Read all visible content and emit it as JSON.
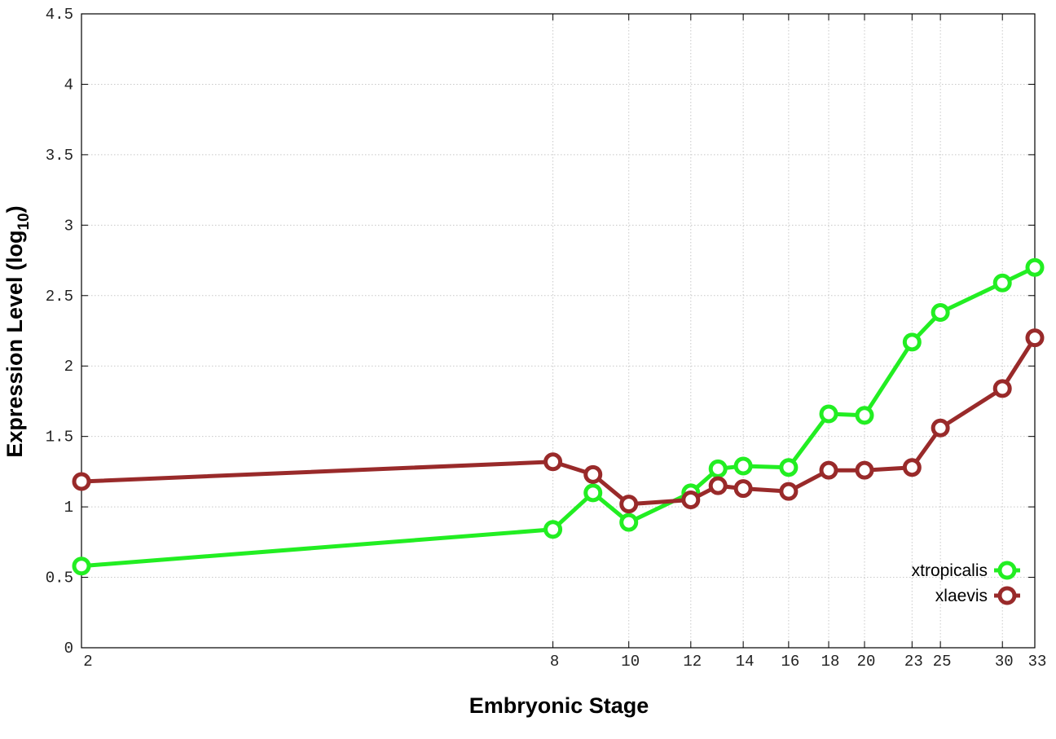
{
  "chart_data": {
    "type": "line",
    "xlabel": "Embryonic Stage",
    "ylabel_main": "Expression Level (log",
    "ylabel_sub": "10",
    "ylabel_close": ")",
    "xlim": [
      2,
      33
    ],
    "ylim": [
      0,
      4.5
    ],
    "x_scale": "log",
    "x_ticks": [
      2,
      8,
      10,
      12,
      14,
      16,
      18,
      20,
      23,
      25,
      30,
      33
    ],
    "y_ticks": [
      0,
      0.5,
      1,
      1.5,
      2,
      2.5,
      3,
      3.5,
      4,
      4.5
    ],
    "y_tick_labels": [
      "0",
      "0.5",
      "1",
      "1.5",
      "2",
      "2.5",
      "3",
      "3.5",
      "4",
      "4.5"
    ],
    "grid": true,
    "legend_position": "bottom-right",
    "x": [
      2,
      8,
      9,
      10,
      12,
      13,
      14,
      16,
      18,
      20,
      23,
      25,
      30,
      33
    ],
    "series": [
      {
        "name": "xtropicalis",
        "color": "#22ee22",
        "values": [
          0.58,
          0.84,
          1.1,
          0.89,
          1.1,
          1.27,
          1.29,
          1.28,
          1.66,
          1.65,
          2.17,
          2.38,
          2.59,
          2.7
        ]
      },
      {
        "name": "xlaevis",
        "color": "#992a2a",
        "values": [
          1.18,
          1.32,
          1.23,
          1.02,
          1.05,
          1.15,
          1.13,
          1.11,
          1.26,
          1.26,
          1.28,
          1.56,
          1.84,
          2.2
        ]
      }
    ]
  }
}
